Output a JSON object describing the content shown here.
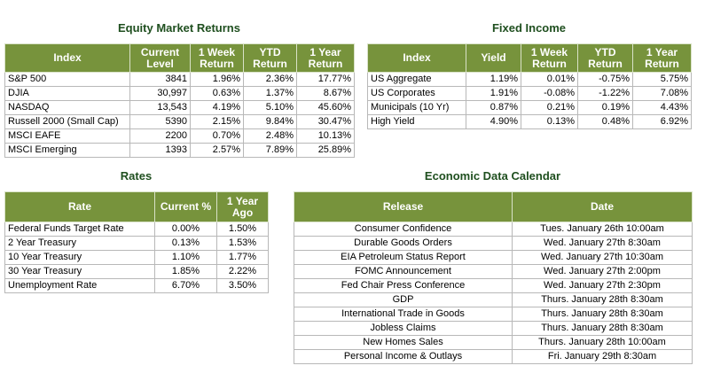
{
  "equity": {
    "title": "Equity Market Returns",
    "headers": [
      "Index",
      "Current Level",
      "1 Week Return",
      "YTD Return",
      "1 Year Return"
    ],
    "rows": [
      [
        "S&P 500",
        "3841",
        "1.96%",
        "2.36%",
        "17.77%"
      ],
      [
        "DJIA",
        "30,997",
        "0.63%",
        "1.37%",
        "8.67%"
      ],
      [
        "NASDAQ",
        "13,543",
        "4.19%",
        "5.10%",
        "45.60%"
      ],
      [
        "Russell 2000 (Small Cap)",
        "5390",
        "2.15%",
        "9.84%",
        "30.47%"
      ],
      [
        "MSCI EAFE",
        "2200",
        "0.70%",
        "2.48%",
        "10.13%"
      ],
      [
        "MSCI Emerging",
        "1393",
        "2.57%",
        "7.89%",
        "25.89%"
      ]
    ]
  },
  "fixed_income": {
    "title": "Fixed Income",
    "headers": [
      "Index",
      "Yield",
      "1 Week Return",
      "YTD Return",
      "1 Year Return"
    ],
    "rows": [
      [
        "US Aggregate",
        "1.19%",
        "0.01%",
        "-0.75%",
        "5.75%"
      ],
      [
        "US Corporates",
        "1.91%",
        "-0.08%",
        "-1.22%",
        "7.08%"
      ],
      [
        "Municipals (10 Yr)",
        "0.87%",
        "0.21%",
        "0.19%",
        "4.43%"
      ],
      [
        "High Yield",
        "4.90%",
        "0.13%",
        "0.48%",
        "6.92%"
      ]
    ]
  },
  "rates": {
    "title": "Rates",
    "headers": [
      "Rate",
      "Current %",
      "1 Year Ago"
    ],
    "rows": [
      [
        "Federal Funds Target Rate",
        "0.00%",
        "1.50%"
      ],
      [
        "2 Year Treasury",
        "0.13%",
        "1.53%"
      ],
      [
        "10 Year Treasury",
        "1.10%",
        "1.77%"
      ],
      [
        "30 Year Treasury",
        "1.85%",
        "2.22%"
      ],
      [
        "Unemployment Rate",
        "6.70%",
        "3.50%"
      ]
    ]
  },
  "calendar": {
    "title": "Economic Data Calendar",
    "headers": [
      "Release",
      "Date"
    ],
    "rows": [
      [
        "Consumer Confidence",
        "Tues. January 26th 10:00am"
      ],
      [
        "Durable Goods Orders",
        "Wed. January 27th 8:30am"
      ],
      [
        "EIA Petroleum Status Report",
        "Wed. January 27th 10:30am"
      ],
      [
        "FOMC Announcement",
        "Wed. January 27th 2:00pm"
      ],
      [
        "Fed Chair Press Conference",
        "Wed. January 27th 2:30pm"
      ],
      [
        "GDP",
        "Thurs. January 28th 8:30am"
      ],
      [
        "International Trade in Goods",
        "Thurs. January 28th 8:30am"
      ],
      [
        "Jobless Claims",
        "Thurs. January 28th 8:30am"
      ],
      [
        "New Homes Sales",
        "Thurs. January 28th 10:00am"
      ],
      [
        "Personal Income & Outlays",
        "Fri. January 29th 8:30am"
      ]
    ]
  }
}
